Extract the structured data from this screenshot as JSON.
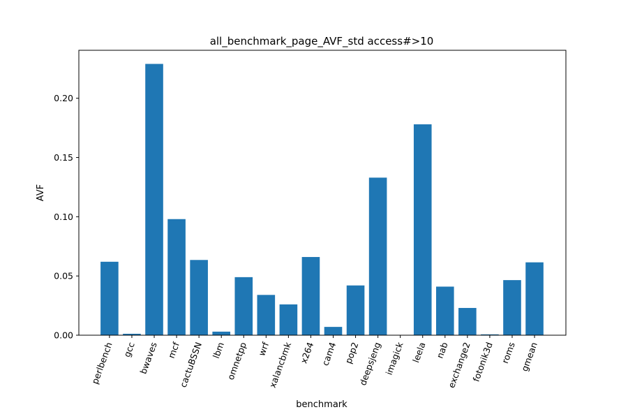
{
  "chart_data": {
    "type": "bar",
    "title": "all_benchmark_page_AVF_std access#>10",
    "xlabel": "benchmark",
    "ylabel": "AVF",
    "categories": [
      "perlbench",
      "gcc",
      "bwaves",
      "mcf",
      "cactuBSSN",
      "lbm",
      "omnetpp",
      "wrf",
      "xalancbmk",
      "x264",
      "cam4",
      "pop2",
      "deepsjeng",
      "imagick",
      "leela",
      "nab",
      "exchange2",
      "fotonik3d",
      "roms",
      "gmean"
    ],
    "values": [
      0.062,
      0.0012,
      0.229,
      0.098,
      0.0635,
      0.003,
      0.049,
      0.034,
      0.026,
      0.066,
      0.007,
      0.042,
      0.133,
      0.0,
      0.178,
      0.041,
      0.023,
      0.0007,
      0.0465,
      0.0615
    ],
    "ylim": [
      0,
      0.2405
    ],
    "yticks": [
      0.0,
      0.05,
      0.1,
      0.15,
      0.2
    ],
    "ytick_labels": [
      "0.00",
      "0.05",
      "0.10",
      "0.15",
      "0.20"
    ],
    "bar_color": "#1f77b4",
    "grid": false,
    "legend": "none"
  }
}
